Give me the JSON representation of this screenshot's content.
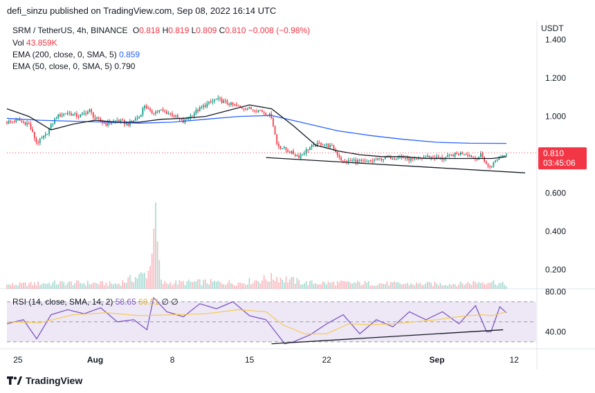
{
  "caption": "defi_sinzu published on TradingView.com, Sep 08, 2022 16:14 UTC",
  "brand": "TradingView",
  "colors": {
    "up": "#089981",
    "down": "#f23645",
    "ema200": "#2962ff",
    "ema50": "#131722",
    "rsi_line": "#7e57c2",
    "rsi_ma": "#f7c948",
    "rsi_band": "#ede7f6",
    "price_tag": "#f23645"
  },
  "legend": {
    "symbol": "SRM / TetherUS, 4h, BINANCE",
    "o_label": "O",
    "o_value": "0.818",
    "h_label": "H",
    "h_value": "0.819",
    "l_label": "L",
    "l_value": "0.809",
    "c_label": "C",
    "c_value": "0.810",
    "change": "−0.008 (−0.98%)",
    "vol_label": "Vol",
    "vol_value": "43.859K",
    "ema200_label": "EMA (200, close, 0, SMA, 5)",
    "ema200_value": "0.859",
    "ema50_label": "EMA (50, close, 0, SMA, 5)",
    "ema50_value": "0.790",
    "rsi_label": "RSI (14, close, SMA, 14, 2)",
    "rsi_value": "58.65",
    "rsi_ma_value": "60.51",
    "rsi_extra": "∅ ∅"
  },
  "price_tag": {
    "price": "0.810",
    "countdown": "03:45:06"
  },
  "chart_data": [
    {
      "type": "candlestick",
      "title": "SRM / TetherUS, 4h, BINANCE",
      "currency": "USDT",
      "y_ticks": [
        "1.400",
        "1.200",
        "1.000",
        "0.600",
        "0.400",
        "0.200"
      ],
      "ylim": [
        0.1,
        1.5
      ],
      "x_ticks": [
        "25",
        "Aug",
        "8",
        "15",
        "22",
        "Sep",
        "12"
      ],
      "x_tick_values": [
        0,
        7,
        14,
        21,
        28,
        38,
        45
      ],
      "xlim": [
        -1,
        47
      ],
      "last_price": 0.81,
      "close_path": [
        [
          -1,
          0.97
        ],
        [
          0,
          0.98
        ],
        [
          1,
          0.96
        ],
        [
          1.7,
          0.86
        ],
        [
          2.5,
          0.9
        ],
        [
          3.5,
          1.0
        ],
        [
          4.5,
          1.02
        ],
        [
          5.5,
          1.0
        ],
        [
          6.5,
          1.03
        ],
        [
          7,
          0.99
        ],
        [
          8,
          0.96
        ],
        [
          9,
          0.98
        ],
        [
          10,
          0.96
        ],
        [
          11,
          1.0
        ],
        [
          11.5,
          1.06
        ],
        [
          12,
          1.02
        ],
        [
          13,
          1.03
        ],
        [
          14,
          1.01
        ],
        [
          15,
          0.97
        ],
        [
          16,
          1.02
        ],
        [
          17,
          1.06
        ],
        [
          18,
          1.09
        ],
        [
          19,
          1.07
        ],
        [
          20,
          1.05
        ],
        [
          21,
          1.04
        ],
        [
          22,
          1.03
        ],
        [
          23,
          1.0
        ],
        [
          23.5,
          0.85
        ],
        [
          24.5,
          0.82
        ],
        [
          25.5,
          0.79
        ],
        [
          26.5,
          0.84
        ],
        [
          27.5,
          0.86
        ],
        [
          28.5,
          0.84
        ],
        [
          29.5,
          0.76
        ],
        [
          30.5,
          0.77
        ],
        [
          31.5,
          0.76
        ],
        [
          33,
          0.78
        ],
        [
          34.5,
          0.79
        ],
        [
          36,
          0.77
        ],
        [
          37,
          0.79
        ],
        [
          38.5,
          0.78
        ],
        [
          39.5,
          0.8
        ],
        [
          40.5,
          0.81
        ],
        [
          41.5,
          0.78
        ],
        [
          42,
          0.8
        ],
        [
          42.7,
          0.73
        ],
        [
          43.5,
          0.78
        ],
        [
          44.3,
          0.81
        ]
      ],
      "volume_path": [
        [
          -1,
          0.02
        ],
        [
          3,
          0.03
        ],
        [
          6,
          0.03
        ],
        [
          9,
          0.025
        ],
        [
          11.5,
          0.075
        ],
        [
          12,
          0.11
        ],
        [
          12.3,
          0.42
        ],
        [
          13,
          0.03
        ],
        [
          17,
          0.035
        ],
        [
          20,
          0.03
        ],
        [
          23.5,
          0.06
        ],
        [
          26,
          0.03
        ],
        [
          30,
          0.03
        ],
        [
          35,
          0.025
        ],
        [
          40,
          0.025
        ],
        [
          42.7,
          0.04
        ],
        [
          44.3,
          0.02
        ]
      ],
      "series": [
        {
          "name": "EMA (200, close, 0, SMA, 5)",
          "x": [
            -1,
            2,
            5,
            8,
            11,
            14,
            17,
            20,
            23,
            26,
            29,
            32,
            35,
            38,
            41,
            44.3
          ],
          "values": [
            0.99,
            0.98,
            0.975,
            0.97,
            0.965,
            0.97,
            0.985,
            1.0,
            1.005,
            0.965,
            0.925,
            0.9,
            0.88,
            0.865,
            0.86,
            0.859
          ]
        },
        {
          "name": "EMA (50, close, 0, SMA, 5)",
          "x": [
            -1,
            1,
            3,
            5,
            7,
            9,
            11,
            13,
            15,
            17,
            19,
            21,
            23,
            25,
            27,
            29,
            31,
            33,
            35,
            37,
            39,
            41,
            43,
            44.3
          ],
          "values": [
            1.04,
            1.0,
            0.93,
            0.96,
            0.98,
            0.97,
            0.97,
            0.985,
            0.99,
            1.0,
            1.03,
            1.06,
            1.04,
            0.95,
            0.85,
            0.82,
            0.8,
            0.79,
            0.79,
            0.78,
            0.78,
            0.78,
            0.78,
            0.79
          ]
        }
      ],
      "trendlines": [
        {
          "x": [
            22.5,
            46
          ],
          "y": [
            0.785,
            0.705
          ]
        }
      ]
    },
    {
      "type": "line",
      "title": "RSI (14, close, SMA, 14, 2)",
      "y_ticks": [
        "80.00",
        "40.00"
      ],
      "ylim": [
        23,
        83
      ],
      "bands": [
        30,
        50,
        70
      ],
      "xlim": [
        -1,
        47
      ],
      "series": [
        {
          "name": "RSI",
          "x": [
            -1,
            0.5,
            1.7,
            3,
            4.5,
            6,
            7.5,
            9,
            10.5,
            11.7,
            12.3,
            13.5,
            15,
            16.5,
            18,
            19.5,
            21,
            22.5,
            24.2,
            25,
            26.5,
            28,
            29.5,
            31,
            32.5,
            34,
            35.5,
            37,
            38.5,
            40,
            41.5,
            42.5,
            42.9,
            43.7,
            44.3
          ],
          "values": [
            48,
            52,
            33,
            57,
            62,
            58,
            64,
            50,
            52,
            42,
            74,
            60,
            55,
            68,
            63,
            70,
            56,
            52,
            28,
            30,
            37,
            48,
            57,
            38,
            52,
            45,
            60,
            52,
            60,
            48,
            66,
            40,
            40,
            65,
            59
          ]
        },
        {
          "name": "RSI MA",
          "x": [
            -1,
            2,
            5,
            8,
            11,
            14,
            17,
            20,
            22.5,
            24,
            26,
            28,
            30,
            32,
            34,
            36,
            38,
            40,
            42,
            43,
            44.3
          ],
          "values": [
            50,
            49,
            57,
            59,
            56,
            57,
            58,
            62,
            60,
            47,
            38,
            38,
            48,
            47,
            48,
            50,
            52,
            55,
            57,
            56,
            60
          ]
        }
      ],
      "trendlines": [
        {
          "x": [
            23,
            44
          ],
          "y": [
            28,
            42
          ]
        }
      ]
    }
  ]
}
